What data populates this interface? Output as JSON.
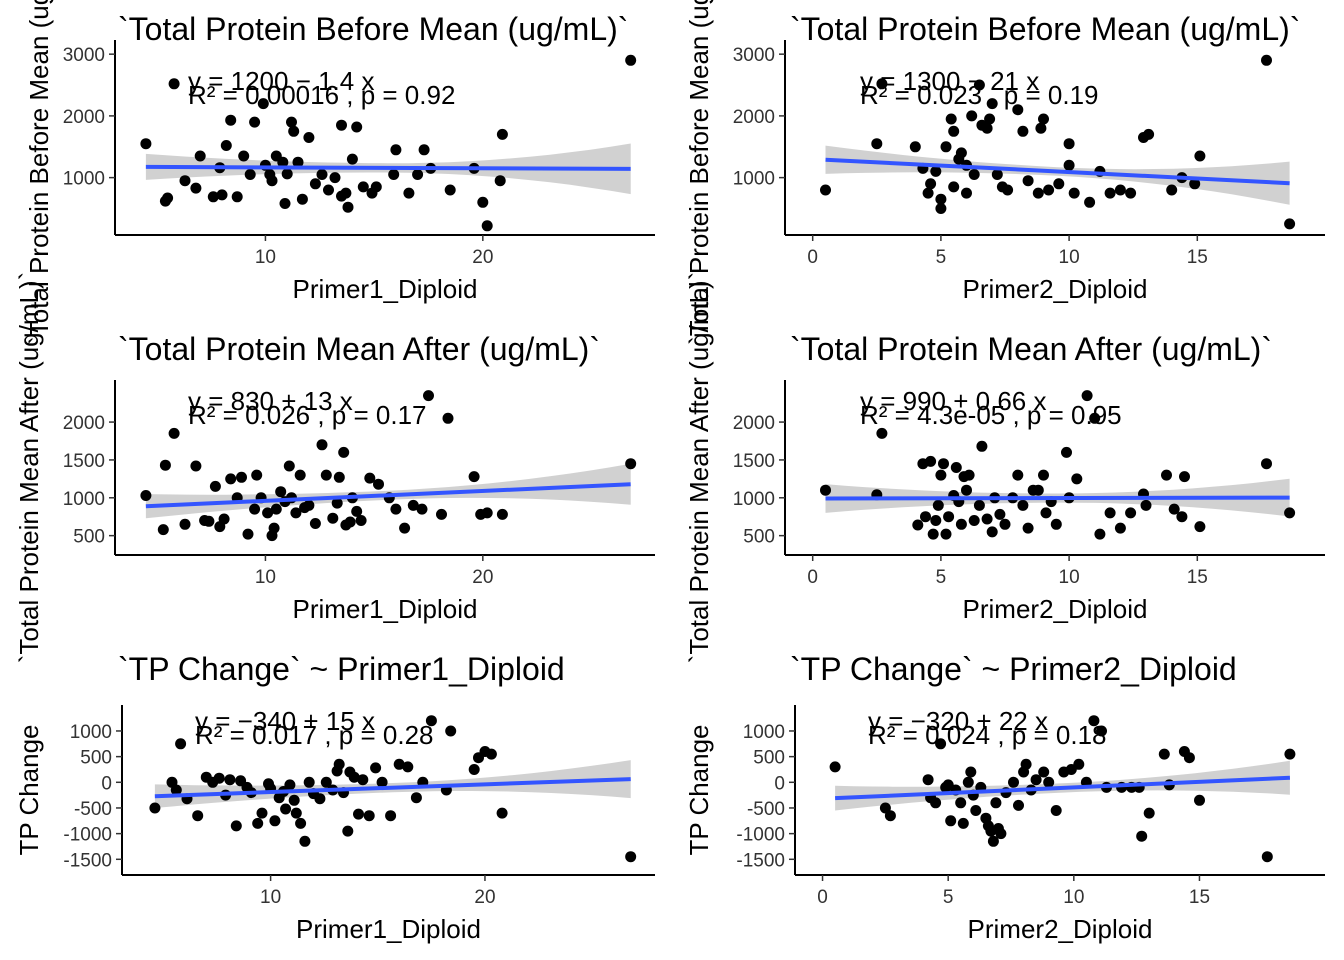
{
  "colors": {
    "point": "#000000",
    "fit_line": "#3355FF",
    "confidence_band": "#BDBDBD",
    "background": "#FFFFFF"
  },
  "chart_data": [
    {
      "type": "scatter",
      "title": "`Total Protein Before Mean  (ug/mL)`",
      "xlabel": "Primer1_Diploid",
      "ylabel": "`Total Protein Before Mean  (ug/mL)`",
      "xlim": [
        4,
        27
      ],
      "ylim": [
        200,
        3100
      ],
      "xticks": [
        10,
        20
      ],
      "yticks": [
        1000,
        2000,
        3000
      ],
      "equation": "y = 1200 − 1.4 x",
      "stats": "R² = 0.00016 , p = 0.92",
      "fit": {
        "intercept": 1180,
        "slope": -1.4
      },
      "band_halfwidth": [
        210,
        75,
        410
      ],
      "grid": false,
      "x": [
        4.5,
        5.4,
        5.5,
        5.8,
        6.3,
        6.8,
        7.0,
        7.6,
        7.9,
        8.0,
        8.2,
        8.4,
        8.7,
        9.0,
        9.3,
        9.5,
        9.9,
        10.0,
        10.2,
        10.3,
        10.5,
        10.8,
        10.9,
        11.0,
        11.2,
        11.3,
        11.5,
        11.7,
        12.0,
        12.3,
        12.6,
        12.9,
        13.2,
        13.5,
        13.5,
        13.7,
        13.8,
        14.0,
        14.2,
        14.5,
        14.9,
        15.1,
        15.9,
        16.0,
        16.6,
        17.0,
        17.3,
        17.6,
        18.5,
        19.6,
        20.0,
        20.2,
        20.8,
        20.9,
        26.8
      ],
      "y": [
        1550,
        620,
        670,
        2520,
        950,
        830,
        1350,
        690,
        1160,
        720,
        1520,
        1930,
        690,
        1350,
        1050,
        1900,
        2200,
        1200,
        1050,
        950,
        1350,
        1250,
        580,
        1060,
        1900,
        1750,
        1250,
        650,
        1650,
        900,
        1050,
        800,
        1000,
        1850,
        700,
        750,
        520,
        1300,
        1820,
        850,
        750,
        850,
        1050,
        1450,
        750,
        1050,
        1450,
        1150,
        800,
        1150,
        600,
        220,
        950,
        1700,
        2900
      ]
    },
    {
      "type": "scatter",
      "title": "`Total Protein Before Mean  (ug/mL)`",
      "xlabel": "Primer2_Diploid",
      "ylabel": "`Total Protein Before Mean  (ug/mL)`",
      "xlim": [
        -0.3,
        19.2
      ],
      "ylim": [
        200,
        3100
      ],
      "xticks": [
        0,
        5,
        10,
        15
      ],
      "yticks": [
        1000,
        2000,
        3000
      ],
      "equation": "y = 1300 − 21 x",
      "stats": "R² = 0.023 , p = 0.19",
      "fit": {
        "intercept": 1300,
        "slope": -21
      },
      "band_halfwidth": [
        230,
        70,
        350
      ],
      "grid": false,
      "x": [
        0.5,
        2.5,
        2.7,
        4.0,
        4.3,
        4.5,
        4.6,
        4.8,
        5.0,
        5.0,
        5.2,
        5.4,
        5.5,
        5.5,
        5.7,
        5.8,
        6.0,
        6.0,
        6.2,
        6.3,
        6.5,
        6.6,
        6.8,
        6.9,
        7.0,
        7.2,
        7.4,
        7.6,
        8.0,
        8.2,
        8.4,
        8.8,
        8.9,
        9.0,
        9.2,
        9.6,
        10.0,
        10.0,
        10.2,
        10.8,
        11.2,
        11.6,
        12.0,
        12.4,
        12.9,
        13.1,
        14.0,
        14.4,
        14.9,
        15.1,
        17.7,
        18.6
      ],
      "y": [
        800,
        1550,
        2520,
        1500,
        1150,
        750,
        900,
        1100,
        500,
        650,
        1500,
        1950,
        850,
        1750,
        1300,
        1400,
        1200,
        750,
        2000,
        1050,
        2500,
        1850,
        1800,
        1950,
        2200,
        1050,
        850,
        800,
        2100,
        1750,
        950,
        750,
        1800,
        1950,
        800,
        900,
        1550,
        1200,
        750,
        600,
        1100,
        750,
        800,
        750,
        1650,
        1700,
        800,
        1000,
        900,
        1350,
        2900,
        250
      ]
    },
    {
      "type": "scatter",
      "title": "`Total Protein Mean After (ug/mL)`",
      "xlabel": "Primer1_Diploid",
      "ylabel": "`Total Protein Mean After (ug/mL)`",
      "xlim": [
        4,
        27
      ],
      "ylim": [
        350,
        2450
      ],
      "xticks": [
        10,
        20
      ],
      "yticks": [
        500,
        1000,
        1500,
        2000
      ],
      "equation": "y = 830 + 13 x",
      "stats": "R² = 0.026 , p = 0.17",
      "fit": {
        "intercept": 830,
        "slope": 13
      },
      "band_halfwidth": [
        160,
        60,
        270
      ],
      "grid": false,
      "x": [
        4.5,
        5.3,
        5.4,
        5.8,
        6.3,
        6.8,
        7.2,
        7.4,
        7.7,
        7.9,
        8.1,
        8.4,
        8.7,
        8.9,
        9.2,
        9.5,
        9.6,
        9.8,
        10.1,
        10.3,
        10.4,
        10.5,
        10.7,
        10.9,
        11.1,
        11.2,
        11.4,
        11.6,
        11.8,
        12.0,
        12.3,
        12.6,
        12.8,
        13.1,
        13.3,
        13.4,
        13.6,
        13.7,
        13.9,
        14.0,
        14.2,
        14.4,
        14.8,
        15.2,
        15.7,
        16.0,
        16.4,
        16.8,
        17.2,
        17.5,
        18.1,
        18.4,
        19.6,
        19.9,
        20.2,
        20.9,
        26.8
      ],
      "y": [
        1030,
        580,
        1430,
        1850,
        650,
        1420,
        700,
        690,
        1150,
        620,
        720,
        1250,
        1000,
        1270,
        520,
        850,
        1300,
        1000,
        800,
        500,
        600,
        850,
        1080,
        950,
        1420,
        1000,
        800,
        1300,
        870,
        900,
        660,
        1700,
        1300,
        730,
        930,
        1270,
        1600,
        640,
        680,
        1000,
        820,
        700,
        1260,
        1180,
        1000,
        850,
        600,
        900,
        850,
        2350,
        780,
        2050,
        1280,
        780,
        800,
        780,
        1450
      ]
    },
    {
      "type": "scatter",
      "title": "`Total Protein Mean After (ug/mL)`",
      "xlabel": "Primer2_Diploid",
      "ylabel": "`Total Protein Mean After (ug/mL)`",
      "xlim": [
        -0.3,
        19.2
      ],
      "ylim": [
        350,
        2450
      ],
      "xticks": [
        0,
        5,
        10,
        15
      ],
      "yticks": [
        500,
        1000,
        1500,
        2000
      ],
      "equation": "y = 990 + 0.66 x",
      "stats": "R² = 4.3e-05 , p = 0.95",
      "fit": {
        "intercept": 990,
        "slope": 0.66
      },
      "band_halfwidth": [
        190,
        60,
        250
      ],
      "grid": false,
      "x": [
        0.5,
        2.5,
        2.7,
        4.1,
        4.3,
        4.4,
        4.6,
        4.7,
        4.8,
        4.9,
        5.0,
        5.1,
        5.2,
        5.3,
        5.5,
        5.6,
        5.7,
        5.8,
        5.9,
        6.0,
        6.1,
        6.3,
        6.5,
        6.6,
        6.8,
        7.0,
        7.1,
        7.3,
        7.5,
        7.8,
        8.0,
        8.2,
        8.4,
        8.6,
        8.8,
        9.0,
        9.1,
        9.3,
        9.5,
        9.9,
        10.0,
        10.3,
        10.7,
        11.0,
        11.2,
        11.6,
        12.0,
        12.4,
        12.9,
        13.0,
        13.8,
        14.1,
        14.4,
        14.5,
        15.1,
        17.7,
        18.6
      ],
      "y": [
        1100,
        1040,
        1850,
        640,
        1450,
        750,
        1480,
        520,
        700,
        900,
        1300,
        1450,
        520,
        750,
        1030,
        1400,
        950,
        650,
        1280,
        1100,
        1300,
        700,
        900,
        1680,
        720,
        550,
        1000,
        780,
        650,
        1000,
        1300,
        900,
        600,
        1100,
        1100,
        1300,
        800,
        950,
        650,
        1600,
        1000,
        1250,
        2350,
        2050,
        520,
        800,
        600,
        800,
        1050,
        900,
        1300,
        850,
        750,
        1280,
        620,
        1450,
        800
      ]
    },
    {
      "type": "scatter",
      "title": "`TP Change`  ~  Primer1_Diploid",
      "xlabel": "Primer1_Diploid",
      "ylabel": "TP Change",
      "xlim": [
        4,
        27
      ],
      "ylim": [
        -1650,
        1350
      ],
      "xticks": [
        10,
        20
      ],
      "yticks": [
        -1500,
        -1000,
        -500,
        0,
        500,
        1000
      ],
      "equation": "y = −340 + 15 x",
      "stats": "R² = 0.017 , p = 0.28",
      "fit": {
        "intercept": -340,
        "slope": 15
      },
      "band_halfwidth": [
        230,
        90,
        370
      ],
      "grid": false,
      "x": [
        4.6,
        5.4,
        5.6,
        5.8,
        6.1,
        6.6,
        7.0,
        7.3,
        7.6,
        7.9,
        8.1,
        8.4,
        8.6,
        8.9,
        9.1,
        9.4,
        9.6,
        9.9,
        10.0,
        10.2,
        10.4,
        10.6,
        10.7,
        10.9,
        11.1,
        11.2,
        11.4,
        11.6,
        11.8,
        12.0,
        12.3,
        12.6,
        12.9,
        13.1,
        13.2,
        13.4,
        13.6,
        13.7,
        13.9,
        14.1,
        14.3,
        14.6,
        14.9,
        15.2,
        15.6,
        16.0,
        16.4,
        16.8,
        17.1,
        17.5,
        18.2,
        18.4,
        19.5,
        19.7,
        20.0,
        20.3,
        20.8,
        26.8
      ],
      "y": [
        -500,
        0,
        -150,
        750,
        -320,
        -650,
        100,
        0,
        80,
        -250,
        50,
        -850,
        30,
        -100,
        -200,
        -800,
        -600,
        -30,
        -120,
        -750,
        -300,
        -180,
        -520,
        -50,
        -350,
        -600,
        -800,
        -1150,
        0,
        -220,
        -320,
        0,
        -150,
        220,
        350,
        -200,
        -950,
        200,
        100,
        -620,
        50,
        -650,
        280,
        0,
        -650,
        350,
        300,
        -300,
        0,
        1200,
        -150,
        1000,
        250,
        480,
        600,
        550,
        -600,
        -1450
      ]
    },
    {
      "type": "scatter",
      "title": "`TP Change`  ~  Primer2_Diploid",
      "xlabel": "Primer2_Diploid",
      "ylabel": "TP Change",
      "xlim": [
        -0.3,
        19.2
      ],
      "ylim": [
        -1650,
        1350
      ],
      "xticks": [
        0,
        5,
        10,
        15
      ],
      "yticks": [
        -1500,
        -1000,
        -500,
        0,
        500,
        1000
      ],
      "equation": "y = −320 + 22 x",
      "stats": "R² = 0.024 , p = 0.18",
      "fit": {
        "intercept": -320,
        "slope": 22
      },
      "band_halfwidth": [
        240,
        90,
        330
      ],
      "grid": false,
      "x": [
        0.5,
        2.5,
        2.7,
        4.2,
        4.3,
        4.5,
        4.7,
        4.9,
        5.0,
        5.1,
        5.3,
        5.5,
        5.6,
        5.8,
        5.9,
        6.0,
        6.1,
        6.3,
        6.5,
        6.6,
        6.7,
        6.8,
        6.9,
        7.0,
        7.1,
        7.3,
        7.6,
        7.8,
        8.0,
        8.1,
        8.3,
        8.5,
        8.8,
        9.0,
        9.3,
        9.6,
        9.9,
        10.2,
        10.5,
        10.8,
        11.1,
        11.3,
        11.9,
        12.3,
        12.6,
        12.7,
        13.0,
        13.6,
        13.8,
        14.4,
        14.6,
        15.0,
        17.7,
        18.6
      ],
      "y": [
        300,
        -500,
        -650,
        50,
        -300,
        -400,
        750,
        -100,
        -50,
        -750,
        -150,
        -400,
        -800,
        0,
        200,
        -250,
        -550,
        -100,
        -700,
        -850,
        -950,
        -1150,
        -400,
        -900,
        -1000,
        -200,
        0,
        -450,
        200,
        350,
        -150,
        50,
        200,
        0,
        -550,
        200,
        250,
        350,
        0,
        1200,
        1000,
        -100,
        -100,
        -100,
        -100,
        -1050,
        -600,
        550,
        -50,
        600,
        480,
        -350,
        -1450,
        550
      ]
    }
  ]
}
